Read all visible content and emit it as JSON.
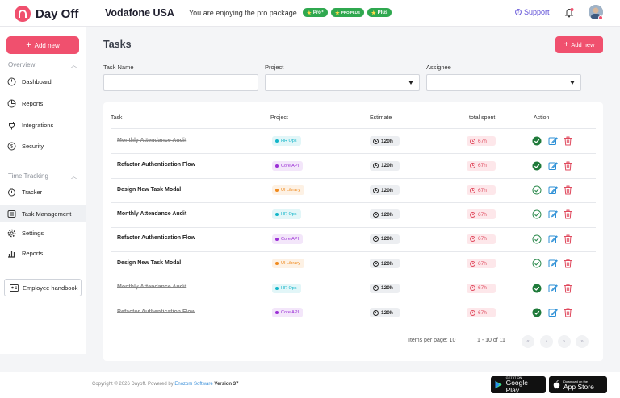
{
  "app": {
    "name": "Day Off",
    "company": "Vodafone USA",
    "pro_text": "You are enjoying the pro package"
  },
  "badges": [
    "Pro⁺",
    "PRO PLUS",
    "Plus"
  ],
  "header": {
    "support_label": "Support"
  },
  "sidebar": {
    "add_new_label": "Add new",
    "overview_title": "Overview",
    "overview_items": [
      {
        "label": "Dashboard",
        "icon": "dashboard-icon"
      },
      {
        "label": "Reports",
        "icon": "pie-chart-icon"
      },
      {
        "label": "Integrations",
        "icon": "plug-icon"
      },
      {
        "label": "Security",
        "icon": "security-icon"
      }
    ],
    "tracking_title": "Time Tracking",
    "tracking_items": [
      {
        "label": "Tracker",
        "icon": "stopwatch-icon"
      },
      {
        "label": "Task Management",
        "icon": "task-list-icon",
        "active": true
      },
      {
        "label": "Settings",
        "icon": "gear-icon"
      },
      {
        "label": "Reports",
        "icon": "bar-chart-icon"
      }
    ],
    "handbook_label": "Employee handbook"
  },
  "main": {
    "title": "Tasks",
    "add_new_label": "Add new",
    "filters": {
      "task_name_label": "Task Name",
      "project_label": "Project",
      "assignee_label": "Assignee"
    },
    "columns": [
      "Task",
      "Project",
      "Estimate",
      "total spent",
      "Action"
    ],
    "rows": [
      {
        "task": "Monthly Attendance Audit",
        "project": "HR Ops",
        "estimate": "120h",
        "spent": "67h",
        "done": true
      },
      {
        "task": "Refactor Authentication Flow",
        "project": "Core API",
        "estimate": "120h",
        "spent": "67h",
        "done": false,
        "checked": true
      },
      {
        "task": "Design New Task Modal",
        "project": "UI Library",
        "estimate": "120h",
        "spent": "67h",
        "done": false
      },
      {
        "task": "Monthly Attendance Audit",
        "project": "HR Ops",
        "estimate": "120h",
        "spent": "67h",
        "done": false
      },
      {
        "task": "Refactor Authentication Flow",
        "project": "Core API",
        "estimate": "120h",
        "spent": "67h",
        "done": false
      },
      {
        "task": "Design New Task Modal",
        "project": "UI Library",
        "estimate": "120h",
        "spent": "67h",
        "done": false
      },
      {
        "task": "Monthly Attendance Audit",
        "project": "HR Ops",
        "estimate": "120h",
        "spent": "67h",
        "done": true
      },
      {
        "task": "Refactor Authentication Flow",
        "project": "Core API",
        "estimate": "120h",
        "spent": "67h",
        "done": true
      }
    ],
    "pagination": {
      "items_per_page": "Items per page: 10",
      "range": "1 - 10 of 11"
    }
  },
  "project_colors": {
    "HR Ops": "#12b5c9",
    "Core API": "#9b2fd6",
    "UI Library": "#f08a1d"
  },
  "footer": {
    "copyright": "Copyright © 2026 Dayoff.  Powered by",
    "powered_by": "Enozom Software",
    "version": "Version  37",
    "google_small": "GET IT ON",
    "google_big": "Google Play",
    "apple_small": "Download on the",
    "apple_big": "App Store"
  }
}
